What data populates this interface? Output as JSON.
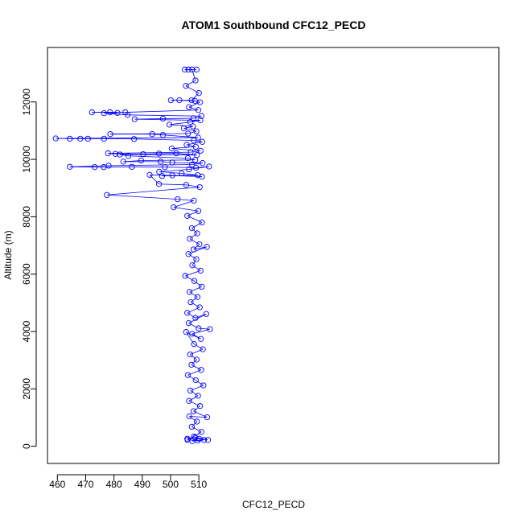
{
  "chart_data": {
    "type": "scatter",
    "title": "ATOM1 Southbound CFC12_PECD",
    "xlabel": "CFC12_PECD",
    "ylabel": "Altitude (m)",
    "xlim": [
      456.5,
      616.0
    ],
    "ylim": [
      -600,
      13900
    ],
    "x_ticks": [
      460,
      470,
      480,
      490,
      500,
      510
    ],
    "x_tick_labels": [
      "460",
      "470",
      "480",
      "490",
      "500",
      "510"
    ],
    "y_ticks": [
      0,
      2000,
      4000,
      6000,
      8000,
      10000,
      12000
    ],
    "y_tick_labels": [
      "0",
      "2000",
      "4000",
      "6000",
      "8000",
      "10000",
      "12000"
    ],
    "series": [
      {
        "name": "CFC12_PECD",
        "color": "#0000ff",
        "style": "points-and-lines",
        "points": [
          [
            509.2,
            13130
          ],
          [
            506.3,
            13130
          ],
          [
            505.0,
            13130
          ],
          [
            507.6,
            13130
          ],
          [
            508.8,
            12750
          ],
          [
            505.4,
            12560
          ],
          [
            510.0,
            12310
          ],
          [
            507.4,
            12060
          ],
          [
            500.1,
            12060
          ],
          [
            503.1,
            12060
          ],
          [
            508.6,
            12040
          ],
          [
            510.4,
            11990
          ],
          [
            506.5,
            11820
          ],
          [
            509.8,
            11720
          ],
          [
            484.0,
            11640
          ],
          [
            472.2,
            11640
          ],
          [
            478.6,
            11640
          ],
          [
            481.2,
            11620
          ],
          [
            476.5,
            11610
          ],
          [
            484.8,
            11550
          ],
          [
            510.9,
            11510
          ],
          [
            508.1,
            11430
          ],
          [
            497.3,
            11420
          ],
          [
            487.3,
            11400
          ],
          [
            510.5,
            11360
          ],
          [
            507.0,
            11300
          ],
          [
            499.6,
            11210
          ],
          [
            507.9,
            11150
          ],
          [
            504.7,
            11080
          ],
          [
            509.1,
            10980
          ],
          [
            506.2,
            10900
          ],
          [
            478.7,
            10880
          ],
          [
            493.5,
            10880
          ],
          [
            497.3,
            10850
          ],
          [
            509.7,
            10760
          ],
          [
            459.4,
            10730
          ],
          [
            464.4,
            10720
          ],
          [
            468.1,
            10720
          ],
          [
            470.8,
            10720
          ],
          [
            476.5,
            10720
          ],
          [
            487.1,
            10710
          ],
          [
            508.2,
            10660
          ],
          [
            511.2,
            10610
          ],
          [
            505.7,
            10510
          ],
          [
            508.9,
            10440
          ],
          [
            500.4,
            10380
          ],
          [
            510.6,
            10300
          ],
          [
            507.1,
            10250
          ],
          [
            477.9,
            10210
          ],
          [
            480.5,
            10190
          ],
          [
            490.3,
            10180
          ],
          [
            495.9,
            10200
          ],
          [
            502.0,
            10210
          ],
          [
            509.3,
            10150
          ],
          [
            482.1,
            10170
          ],
          [
            485.1,
            10120
          ],
          [
            506.1,
            10040
          ],
          [
            508.7,
            9980
          ],
          [
            489.6,
            9960
          ],
          [
            483.3,
            9920
          ],
          [
            496.5,
            9920
          ],
          [
            500.6,
            9890
          ],
          [
            511.3,
            9870
          ],
          [
            507.6,
            9820
          ],
          [
            478.1,
            9780
          ],
          [
            464.4,
            9740
          ],
          [
            473.2,
            9730
          ],
          [
            476.4,
            9730
          ],
          [
            486.3,
            9740
          ],
          [
            498.0,
            9730
          ],
          [
            509.0,
            9710
          ],
          [
            513.6,
            9750
          ],
          [
            506.5,
            9650
          ],
          [
            496.0,
            9570
          ],
          [
            503.9,
            9510
          ],
          [
            509.6,
            9450
          ],
          [
            497.0,
            9420
          ],
          [
            500.6,
            9440
          ],
          [
            511.1,
            9400
          ],
          [
            492.6,
            9460
          ],
          [
            495.9,
            9140
          ],
          [
            505.5,
            9110
          ],
          [
            510.3,
            9030
          ],
          [
            477.5,
            8760
          ],
          [
            502.5,
            8610
          ],
          [
            508.2,
            8560
          ],
          [
            501.1,
            8330
          ],
          [
            509.8,
            8200
          ],
          [
            505.9,
            8030
          ],
          [
            511.1,
            7800
          ],
          [
            507.5,
            7600
          ],
          [
            509.4,
            7420
          ],
          [
            506.8,
            7230
          ],
          [
            510.2,
            7040
          ],
          [
            508.1,
            6860
          ],
          [
            512.8,
            6950
          ],
          [
            506.3,
            6700
          ],
          [
            509.1,
            6520
          ],
          [
            507.7,
            6310
          ],
          [
            510.6,
            6120
          ],
          [
            505.2,
            5940
          ],
          [
            508.4,
            5760
          ],
          [
            511.0,
            5560
          ],
          [
            506.7,
            5380
          ],
          [
            509.5,
            5200
          ],
          [
            507.1,
            5020
          ],
          [
            510.3,
            4840
          ],
          [
            505.9,
            4650
          ],
          [
            508.8,
            4470
          ],
          [
            512.6,
            4610
          ],
          [
            506.4,
            4290
          ],
          [
            509.9,
            4110
          ],
          [
            513.9,
            4080
          ],
          [
            507.6,
            3920
          ],
          [
            510.7,
            3740
          ],
          [
            505.5,
            3980
          ],
          [
            508.3,
            3560
          ],
          [
            511.4,
            3380
          ],
          [
            506.9,
            3200
          ],
          [
            509.2,
            3020
          ],
          [
            507.4,
            2840
          ],
          [
            510.8,
            2660
          ],
          [
            506.1,
            2480
          ],
          [
            508.9,
            2300
          ],
          [
            511.6,
            2120
          ],
          [
            507.0,
            1940
          ],
          [
            509.7,
            1760
          ],
          [
            506.5,
            1580
          ],
          [
            510.4,
            1400
          ],
          [
            508.1,
            1220
          ],
          [
            512.9,
            1010
          ],
          [
            506.6,
            1040
          ],
          [
            509.3,
            860
          ],
          [
            507.5,
            680
          ],
          [
            510.9,
            500
          ],
          [
            508.2,
            340
          ],
          [
            506.0,
            220
          ],
          [
            509.6,
            200
          ],
          [
            511.8,
            220
          ],
          [
            507.7,
            180
          ],
          [
            510.1,
            260
          ],
          [
            513.2,
            220
          ],
          [
            508.7,
            310
          ],
          [
            505.9,
            260
          ]
        ]
      }
    ]
  }
}
